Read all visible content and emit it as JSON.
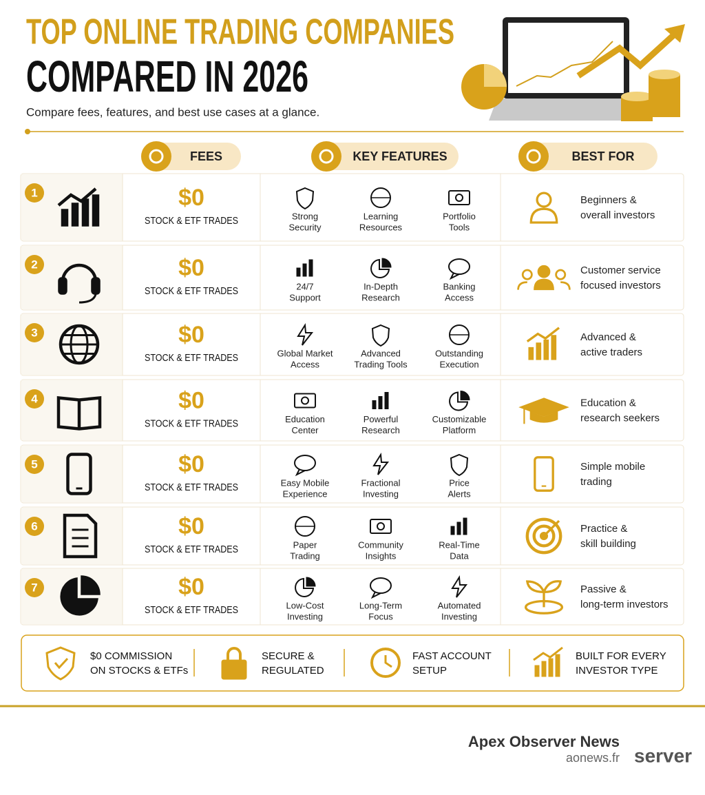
{
  "header": {
    "title_line1": "TOP ONLINE TRADING COMPANIES",
    "title_line2": "COMPARED IN 2026",
    "subtitle": "Compare fees, features, and best use cases at a glance."
  },
  "columns": [
    "FEES",
    "KEY FEATURES",
    "BEST FOR"
  ],
  "rows": [
    {
      "rank": 1,
      "fee": "$0",
      "fee_label": "STOCK & ETF TRADES",
      "features": [
        [
          "Strong",
          "Security"
        ],
        [
          "Learning",
          "Resources"
        ],
        [
          "Portfolio",
          "Tools"
        ]
      ],
      "best_for": [
        "Beginners &",
        "overall investors"
      ]
    },
    {
      "rank": 2,
      "fee": "$0",
      "fee_label": "STOCK & ETF TRADES",
      "features": [
        [
          "24/7",
          "Support"
        ],
        [
          "In-Depth",
          "Research"
        ],
        [
          "Banking",
          "Access"
        ]
      ],
      "best_for": [
        "Customer service",
        "focused investors"
      ]
    },
    {
      "rank": 3,
      "fee": "$0",
      "fee_label": "STOCK & ETF TRADES",
      "features": [
        [
          "Global Market",
          "Access"
        ],
        [
          "Advanced",
          "Trading Tools"
        ],
        [
          "Outstanding",
          "Execution"
        ]
      ],
      "best_for": [
        "Advanced &",
        "active traders"
      ]
    },
    {
      "rank": 4,
      "fee": "$0",
      "fee_label": "STOCK & ETF TRADES",
      "features": [
        [
          "Education",
          "Center"
        ],
        [
          "Powerful",
          "Research"
        ],
        [
          "Customizable",
          "Platform"
        ]
      ],
      "best_for": [
        "Education &",
        "research seekers"
      ]
    },
    {
      "rank": 5,
      "fee": "$0",
      "fee_label": "STOCK & ETF TRADES",
      "features": [
        [
          "Easy Mobile",
          "Experience"
        ],
        [
          "Fractional",
          "Investing"
        ],
        [
          "Price",
          "Alerts"
        ]
      ],
      "best_for": [
        "Simple mobile",
        "trading"
      ]
    },
    {
      "rank": 6,
      "fee": "$0",
      "fee_label": "STOCK & ETF TRADES",
      "features": [
        [
          "Paper",
          "Trading"
        ],
        [
          "Community",
          "Insights"
        ],
        [
          "Real-Time",
          "Data"
        ]
      ],
      "best_for": [
        "Practice &",
        "skill building"
      ]
    },
    {
      "rank": 7,
      "fee": "$0",
      "fee_label": "STOCK & ETF TRADES",
      "features": [
        [
          "Low-Cost",
          "Investing"
        ],
        [
          "Long-Term",
          "Focus"
        ],
        [
          "Automated",
          "Investing"
        ]
      ],
      "best_for": [
        "Passive &",
        "long-term investors"
      ]
    }
  ],
  "highlights": [
    [
      "$0 COMMISSION",
      "ON STOCKS & ETFs"
    ],
    [
      "SECURE &",
      "REGULATED"
    ],
    [
      "FAST ACCOUNT",
      "SETUP"
    ],
    [
      "BUILT FOR EVERY",
      "INVESTOR TYPE"
    ]
  ],
  "footer": {
    "brand": "Apex Observer News",
    "site": "aonews.fr",
    "logo_text": "server"
  }
}
